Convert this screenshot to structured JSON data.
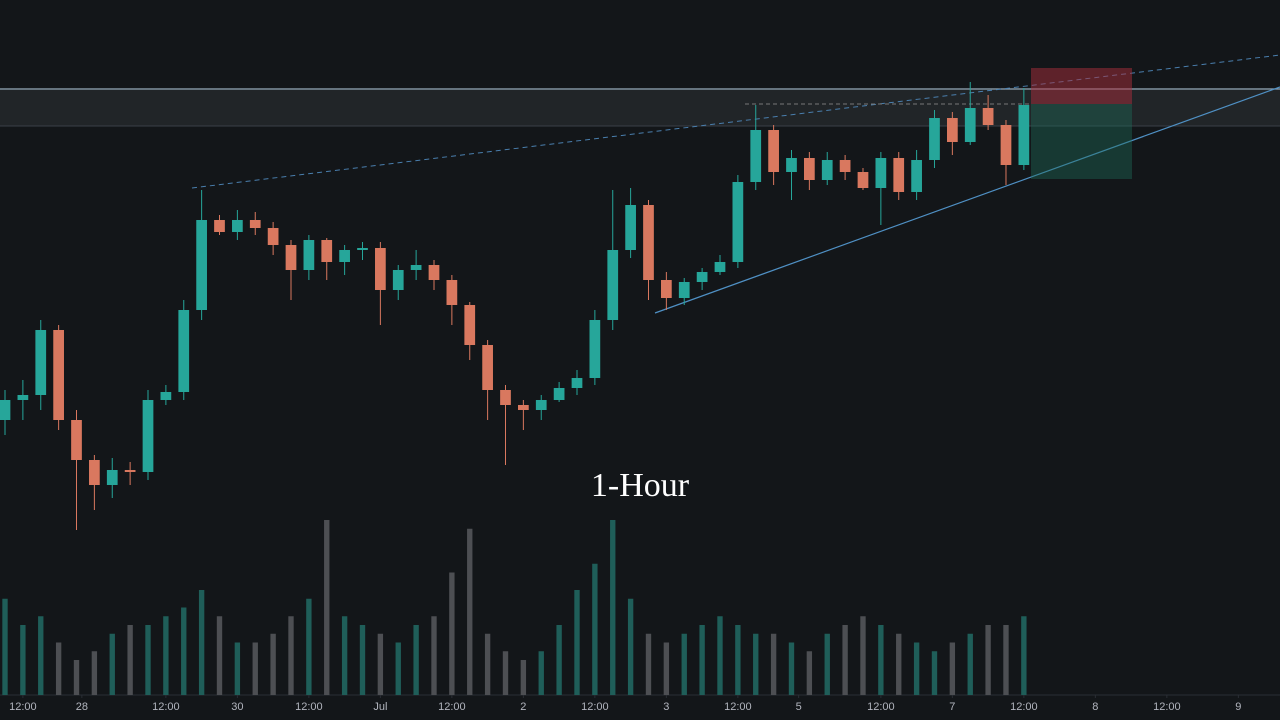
{
  "chart_data": {
    "type": "candlestick",
    "title": "1-Hour",
    "open": [
      300,
      320,
      325,
      390,
      300,
      260,
      235,
      250,
      248,
      320,
      328,
      410,
      500,
      488,
      500,
      492,
      475,
      450,
      480,
      458,
      470,
      472,
      430,
      450,
      455,
      440,
      415,
      375,
      330,
      315,
      310,
      320,
      332,
      342,
      400,
      470,
      515,
      440,
      422,
      438,
      448,
      458,
      538,
      590,
      548,
      562,
      540,
      560,
      548,
      532,
      562,
      528,
      560,
      602,
      578,
      612,
      595,
      555
    ],
    "high": [
      330,
      340,
      400,
      395,
      310,
      265,
      262,
      258,
      330,
      335,
      420,
      530,
      505,
      510,
      508,
      498,
      480,
      485,
      482,
      475,
      478,
      478,
      455,
      470,
      460,
      445,
      418,
      380,
      335,
      320,
      325,
      338,
      350,
      410,
      530,
      532,
      520,
      448,
      442,
      452,
      465,
      545,
      615,
      595,
      570,
      568,
      568,
      565,
      552,
      568,
      568,
      570,
      610,
      608,
      638,
      625,
      600,
      632
    ],
    "low": [
      285,
      300,
      310,
      290,
      190,
      210,
      222,
      235,
      240,
      315,
      320,
      400,
      485,
      480,
      485,
      465,
      420,
      440,
      440,
      445,
      460,
      395,
      420,
      440,
      430,
      395,
      360,
      300,
      255,
      290,
      300,
      318,
      325,
      335,
      390,
      462,
      420,
      410,
      415,
      430,
      445,
      452,
      530,
      535,
      520,
      530,
      535,
      540,
      530,
      495,
      520,
      520,
      552,
      565,
      575,
      590,
      535,
      550
    ],
    "close": [
      320,
      325,
      390,
      300,
      260,
      235,
      250,
      248,
      320,
      328,
      410,
      500,
      488,
      500,
      492,
      475,
      450,
      480,
      458,
      470,
      472,
      430,
      450,
      455,
      440,
      415,
      375,
      330,
      315,
      310,
      320,
      332,
      342,
      400,
      470,
      515,
      440,
      422,
      438,
      448,
      458,
      538,
      590,
      548,
      562,
      540,
      560,
      548,
      532,
      562,
      528,
      560,
      602,
      578,
      612,
      595,
      555,
      615
    ],
    "volume": [
      55,
      40,
      45,
      30,
      20,
      25,
      35,
      40,
      40,
      45,
      50,
      60,
      45,
      30,
      30,
      35,
      45,
      55,
      100,
      45,
      40,
      35,
      30,
      40,
      45,
      70,
      95,
      35,
      25,
      20,
      25,
      40,
      60,
      75,
      100,
      55,
      35,
      30,
      35,
      40,
      45,
      40,
      35,
      35,
      30,
      25,
      35,
      40,
      45,
      40,
      35,
      30,
      25,
      30,
      35,
      40,
      40,
      45
    ],
    "up_color": "#26a69a",
    "down_color": "#d9785f",
    "up_volume_color": "#1f5e59",
    "down_volume_color": "#4d4f53",
    "ylim": [
      0,
      720
    ],
    "volume_lim": [
      0,
      100
    ],
    "xlim": [
      -0.28,
      71.33
    ],
    "xticks": [
      {
        "value": 1.0,
        "label": "12:00"
      },
      {
        "value": 4.3,
        "label": "28"
      },
      {
        "value": 9.0,
        "label": "12:00"
      },
      {
        "value": 13.0,
        "label": "30"
      },
      {
        "value": 17.0,
        "label": "12:00"
      },
      {
        "value": 21.0,
        "label": "Jul"
      },
      {
        "value": 25.0,
        "label": "12:00"
      },
      {
        "value": 29.0,
        "label": "2"
      },
      {
        "value": 33.0,
        "label": "12:00"
      },
      {
        "value": 37.0,
        "label": "3"
      },
      {
        "value": 41.0,
        "label": "12:00"
      },
      {
        "value": 44.4,
        "label": "5"
      },
      {
        "value": 49.0,
        "label": "12:00"
      },
      {
        "value": 53.0,
        "label": "7"
      },
      {
        "value": 57.0,
        "label": "12:00"
      },
      {
        "value": 61.0,
        "label": "8"
      },
      {
        "value": 65.0,
        "label": "12:00"
      },
      {
        "value": 69.0,
        "label": "9"
      }
    ]
  }
}
